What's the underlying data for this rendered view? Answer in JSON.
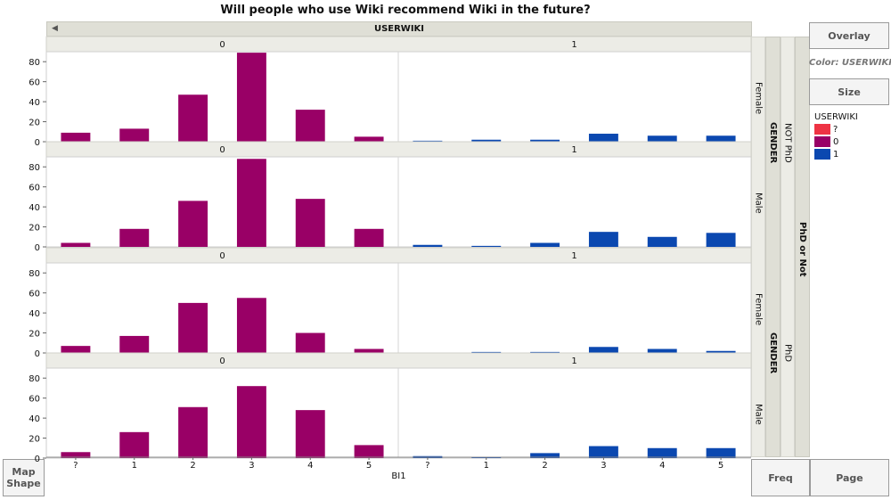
{
  "title": "Will people who use Wiki recommend Wiki in the future?",
  "colors": {
    "wiki0": "#990066",
    "wiki1": "#0b48b0",
    "missing": "#ee3344"
  },
  "header": {
    "group_x_label": "USERWIKI",
    "collapse_icon": "triangle-left-icon",
    "groups": [
      "0",
      "1"
    ]
  },
  "right_labels": {
    "outer": "PhD or Not",
    "phd_levels": [
      "NOT PhD",
      "PhD"
    ],
    "gender_label": "GENDER",
    "gender_levels": [
      "Female",
      "Male",
      "Female",
      "Male"
    ]
  },
  "x_axis": {
    "label": "BI1"
  },
  "buttons": {
    "overlay": "Overlay",
    "color": "Color: USERWIKI",
    "size": "Size",
    "map_shape": "Map Shape",
    "freq": "Freq",
    "page": "Page"
  },
  "legend": {
    "title": "USERWIKI",
    "items": [
      {
        "label": "?",
        "color": "#ee3344"
      },
      {
        "label": "0",
        "color": "#990066"
      },
      {
        "label": "1",
        "color": "#0b48b0"
      }
    ]
  },
  "chart_data": {
    "type": "bar",
    "title": "Will people who use Wiki recommend Wiki in the future?",
    "xlabel": "BI1",
    "ylim": [
      0,
      90
    ],
    "yticks": [
      0,
      20,
      40,
      60,
      80
    ],
    "group_by_x": {
      "label": "USERWIKI",
      "levels": [
        "0",
        "1"
      ]
    },
    "categories": [
      "?",
      "1",
      "2",
      "3",
      "4",
      "5"
    ],
    "rows": [
      {
        "phd": "NOT PhD",
        "gender": "Female",
        "series": [
          {
            "userwiki": "0",
            "values": [
              9,
              13,
              47,
              89,
              32,
              5
            ]
          },
          {
            "userwiki": "1",
            "values": [
              1,
              2,
              2,
              8,
              6,
              6
            ]
          }
        ]
      },
      {
        "phd": "NOT PhD",
        "gender": "Male",
        "series": [
          {
            "userwiki": "0",
            "values": [
              4,
              18,
              46,
              88,
              48,
              18
            ]
          },
          {
            "userwiki": "1",
            "values": [
              2,
              1,
              4,
              15,
              10,
              14
            ]
          }
        ]
      },
      {
        "phd": "PhD",
        "gender": "Female",
        "series": [
          {
            "userwiki": "0",
            "values": [
              7,
              17,
              50,
              55,
              20,
              4
            ]
          },
          {
            "userwiki": "1",
            "values": [
              0,
              1,
              1,
              6,
              4,
              2
            ]
          }
        ]
      },
      {
        "phd": "PhD",
        "gender": "Male",
        "series": [
          {
            "userwiki": "0",
            "values": [
              6,
              26,
              51,
              72,
              48,
              13
            ]
          },
          {
            "userwiki": "1",
            "values": [
              2,
              1,
              5,
              12,
              10,
              10
            ]
          }
        ]
      }
    ]
  }
}
